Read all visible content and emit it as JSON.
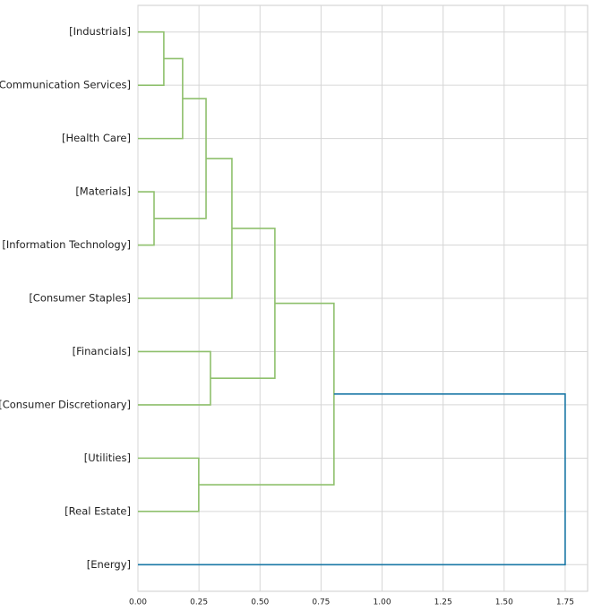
{
  "chart_data": {
    "type": "dendrogram",
    "orientation": "right",
    "categories": [
      "[Industrials]",
      "[Communication Services]",
      "[Health Care]",
      "[Materials]",
      "[Information Technology]",
      "[Consumer Staples]",
      "[Financials]",
      "[Consumer Discretionary]",
      "[Utilities]",
      "[Real Estate]",
      "[Energy]"
    ],
    "links": [
      {
        "children": [
          0,
          1
        ],
        "height": 0.106,
        "color": "#8fc06d"
      },
      {
        "children": [
          11,
          2
        ],
        "height": 0.183,
        "color": "#8fc06d"
      },
      {
        "children": [
          3,
          4
        ],
        "height": 0.066,
        "color": "#8fc06d"
      },
      {
        "children": [
          12,
          13
        ],
        "height": 0.279,
        "color": "#8fc06d"
      },
      {
        "children": [
          14,
          5
        ],
        "height": 0.385,
        "color": "#8fc06d"
      },
      {
        "children": [
          6,
          7
        ],
        "height": 0.297,
        "color": "#8fc06d"
      },
      {
        "children": [
          15,
          16
        ],
        "height": 0.561,
        "color": "#8fc06d"
      },
      {
        "children": [
          8,
          9
        ],
        "height": 0.249,
        "color": "#8fc06d"
      },
      {
        "children": [
          17,
          18
        ],
        "height": 0.803,
        "color": "#8fc06d"
      },
      {
        "children": [
          19,
          10
        ],
        "height": 1.75,
        "color": "#1a78a6"
      }
    ],
    "xlim": [
      0,
      1.842
    ],
    "xticks": [
      {
        "value": 0,
        "label": "0.00"
      },
      {
        "value": 0.25,
        "label": "0.25"
      },
      {
        "value": 0.5,
        "label": "0.50"
      },
      {
        "value": 0.75,
        "label": "0.75"
      },
      {
        "value": 1,
        "label": "1.00"
      },
      {
        "value": 1.25,
        "label": "1.25"
      },
      {
        "value": 1.5,
        "label": "1.50"
      },
      {
        "value": 1.75,
        "label": "1.75"
      }
    ],
    "grid": true
  }
}
